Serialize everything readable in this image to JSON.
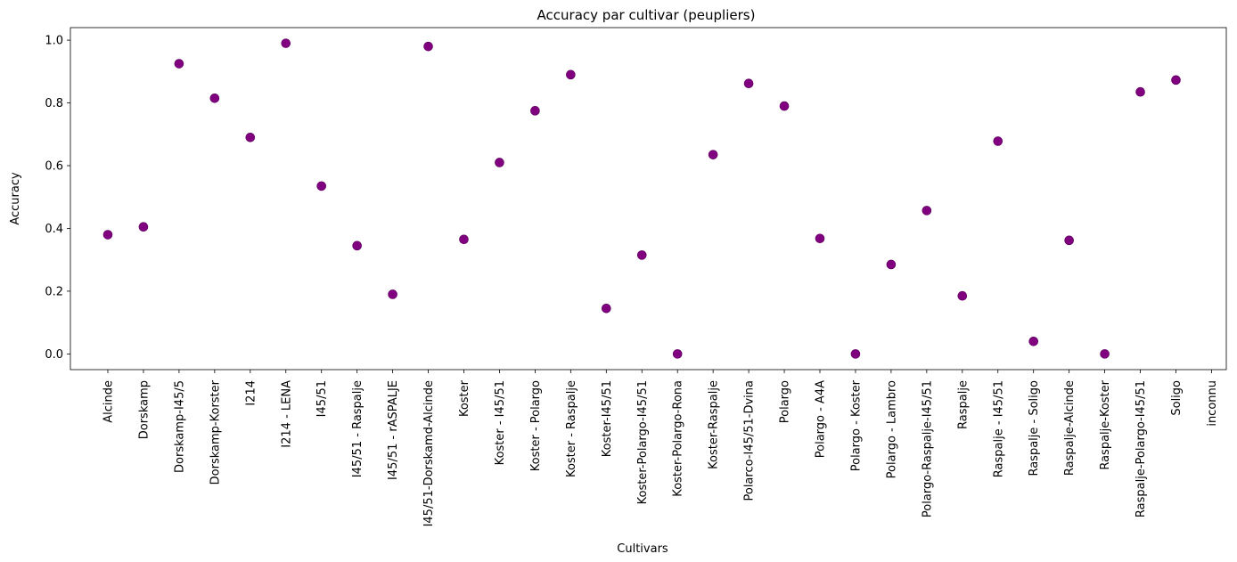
{
  "chart_data": {
    "type": "scatter",
    "title": "Accuracy par cultivar (peupliers)",
    "xlabel": "Cultivars",
    "ylabel": "Accuracy",
    "ylim": [
      -0.05,
      1.04
    ],
    "yticks": [
      "0.0",
      "0.2",
      "0.4",
      "0.6",
      "0.8",
      "1.0"
    ],
    "grid": false,
    "marker_color": "#800080",
    "categories": [
      "Alcinde",
      "Dorskamp",
      "Dorskamp-I45/5",
      "Dorskamp-Korster",
      "I214",
      "I214 - LENA",
      "I45/51",
      "I45/51 - Raspalje",
      "I45/51 - rASPALJE",
      "I45/51-Dorskamd-Alcinde",
      "Koster",
      "Koster - I45/51",
      "Koster - Polargo",
      "Koster - Raspalje",
      "Koster-I45/51",
      "Koster-Polargo-I45/51",
      "Koster-Polargo-Rona",
      "Koster-Raspalje",
      "Polarco-I45/51-Dvina",
      "Polargo",
      "Polargo - A4A",
      "Polargo - Koster",
      "Polargo - Lambro",
      "Polargo-Raspalje-I45/51",
      "Raspalje",
      "Raspalje - I45/51",
      "Raspalje - Soligo",
      "Raspalje-Alcinde",
      "Raspalje-Koster",
      "Raspalje-Polargo-I45/51",
      "Soligo",
      "inconnu"
    ],
    "values": [
      0.38,
      0.405,
      0.925,
      0.815,
      0.69,
      0.99,
      0.535,
      0.345,
      0.19,
      0.98,
      0.365,
      0.61,
      0.775,
      0.89,
      0.145,
      0.315,
      0.0,
      0.635,
      0.862,
      0.79,
      0.368,
      0.0,
      0.285,
      0.457,
      0.185,
      0.678,
      0.04,
      0.362,
      0.0,
      0.835,
      0.873,
      null
    ]
  }
}
